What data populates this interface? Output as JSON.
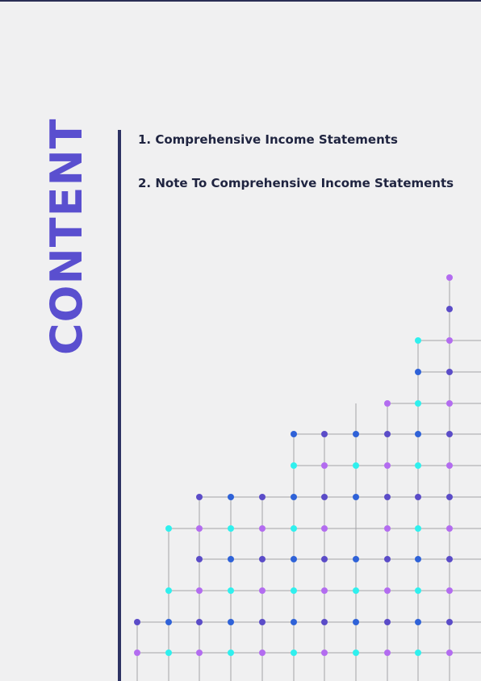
{
  "page": {
    "vertical_title": "CONTENT",
    "toc_items": [
      "1. Comprehensive Income Statements",
      "2. Note To Comprehensive Income Statements"
    ]
  },
  "colors": {
    "title": "#5a4fcf",
    "divider": "#2d3263",
    "toc_text": "#1f2440",
    "dot_purple": "#b36cf0",
    "dot_violet": "#5b4cc8",
    "dot_blue": "#2f62d8",
    "dot_cyan": "#2ff0ee",
    "grid_line": "#a3a3a8"
  },
  "decoration": {
    "name": "dot-grid-pattern",
    "icon": "dot-grid-icon"
  }
}
